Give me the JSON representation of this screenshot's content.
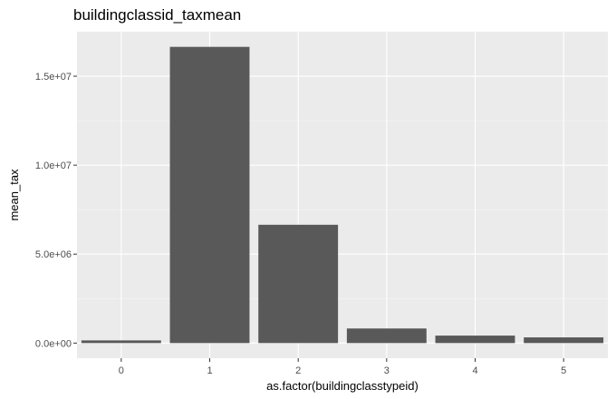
{
  "chart_data": {
    "type": "bar",
    "title": "buildingclassid_taxmean",
    "xlabel": "as.factor(buildingclasstypeid)",
    "ylabel": "mean_tax",
    "categories": [
      "0",
      "1",
      "2",
      "3",
      "4",
      "5"
    ],
    "values": [
      150000,
      16650000,
      6650000,
      820000,
      420000,
      320000
    ],
    "ylim": [
      -850000,
      17500000
    ],
    "y_ticks": [
      0,
      5000000,
      10000000,
      15000000
    ],
    "y_tick_labels": [
      "0.0e+00",
      "5.0e+06",
      "1.0e+07",
      "1.5e+07"
    ],
    "grid": true,
    "legend": "none",
    "colors": {
      "bar": "#595959",
      "panel": "#ebebeb",
      "grid_major": "#ffffff",
      "grid_minor": "#f5f5f5",
      "tick_text": "#4d4d4d",
      "tick_mark": "#333333"
    }
  }
}
